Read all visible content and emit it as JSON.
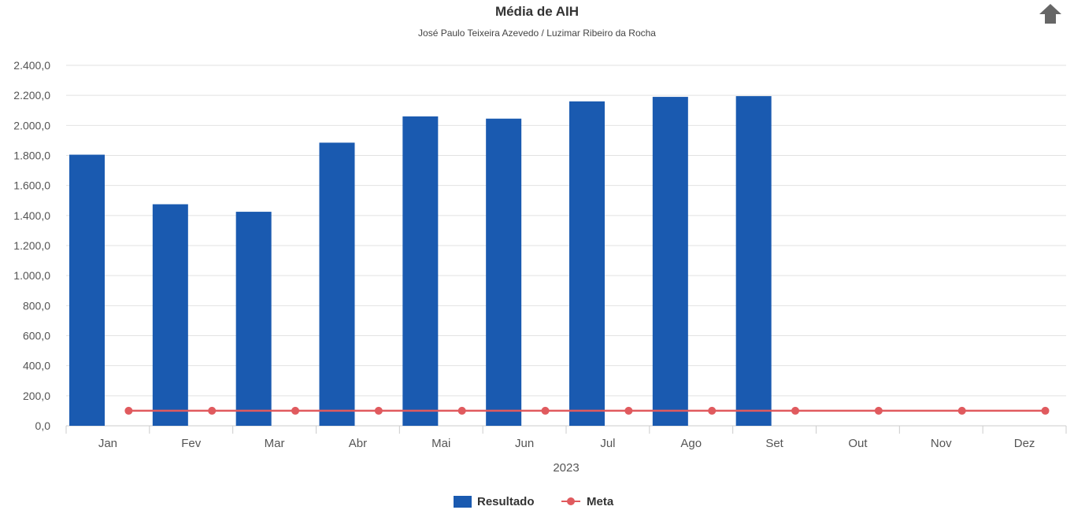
{
  "colors": {
    "bar": "#1a5ab0",
    "line": "#e05a5e",
    "grid": "#e2e2e2",
    "axis": "#cccccc",
    "menu": "#666666"
  },
  "menu_icon": "arrow-up-icon",
  "chart_data": {
    "type": "bar",
    "title": "Média de AIH",
    "subtitle": "José Paulo Teixeira Azevedo / Luzimar Ribeiro da Rocha",
    "categories": [
      "Jan",
      "Fev",
      "Mar",
      "Abr",
      "Mai",
      "Jun",
      "Jul",
      "Ago",
      "Set",
      "Out",
      "Nov",
      "Dez"
    ],
    "x_group_label": "2023",
    "ylim": [
      0,
      2400
    ],
    "y_ticks": [
      "0,0",
      "200,0",
      "400,0",
      "600,0",
      "800,0",
      "1.000,0",
      "1.200,0",
      "1.400,0",
      "1.600,0",
      "1.800,0",
      "2.000,0",
      "2.200,0",
      "2.400,0"
    ],
    "grid": true,
    "legend_position": "bottom-center",
    "series": [
      {
        "name": "Resultado",
        "type": "bar",
        "values": [
          1805,
          1475,
          1425,
          1885,
          2060,
          2045,
          2160,
          2190,
          2195,
          null,
          null,
          null
        ]
      },
      {
        "name": "Meta",
        "type": "line",
        "values": [
          100,
          100,
          100,
          100,
          100,
          100,
          100,
          100,
          100,
          100,
          100,
          100
        ]
      }
    ]
  }
}
